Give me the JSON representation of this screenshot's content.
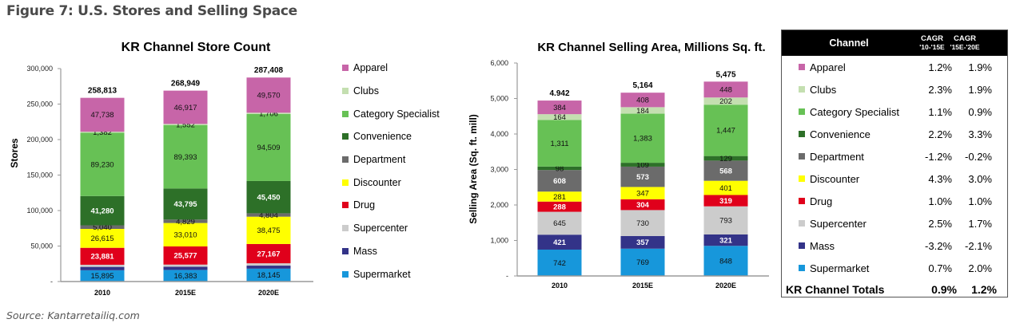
{
  "figure_title": "Figure 7: U.S. Stores and Selling Space",
  "source": "Source: Kantarretailiq.com",
  "legend": {
    "items": [
      {
        "label": "Apparel",
        "color": "#C765A8"
      },
      {
        "label": "Clubs",
        "color": "#C4DFB0"
      },
      {
        "label": "Category Specialist",
        "color": "#67C155"
      },
      {
        "label": "Convenience",
        "color": "#2D7028"
      },
      {
        "label": "Department",
        "color": "#6B6B6B"
      },
      {
        "label": "Discounter",
        "color": "#FFFF00"
      },
      {
        "label": "Drug",
        "color": "#E0001B"
      },
      {
        "label": "Supercenter",
        "color": "#CCCCCC"
      },
      {
        "label": "Mass",
        "color": "#333388"
      },
      {
        "label": "Supermarket",
        "color": "#1797DB"
      }
    ]
  },
  "chart_data": [
    {
      "type": "bar",
      "stacked": true,
      "title": "KR Channel Store Count",
      "xlabel": "",
      "ylabel": "Stores",
      "categories": [
        "2010",
        "2015E",
        "2020E"
      ],
      "ylim": [
        0,
        300000
      ],
      "yticks": [
        0,
        50000,
        100000,
        150000,
        200000,
        250000,
        300000
      ],
      "ytick_labels": [
        "-",
        "50,000",
        "100,000",
        "150,000",
        "200,000",
        "250,000",
        "300,000"
      ],
      "grid": false,
      "totals": [
        258813,
        268949,
        287408
      ],
      "total_labels": [
        "258,813",
        "268,949",
        "287,408"
      ],
      "series": [
        {
          "name": "Supermarket",
          "color": "#1797DB",
          "values": [
            15895,
            16383,
            18145
          ],
          "labels": [
            "15,895",
            "16,383",
            "18,145"
          ]
        },
        {
          "name": "Mass",
          "color": "#333388",
          "values": [
            4752,
            4393,
            4282
          ],
          "labels": null,
          "note": "unlabeled; estimated"
        },
        {
          "name": "Supercenter",
          "color": "#CCCCCC",
          "values": [
            3000,
            3100,
            3300
          ],
          "labels": null,
          "note": "unlabeled; estimated"
        },
        {
          "name": "Drug",
          "color": "#E0001B",
          "values": [
            23881,
            25577,
            27167
          ],
          "labels": [
            "23,881",
            "25,577",
            "27,167"
          ]
        },
        {
          "name": "Discounter",
          "color": "#FFFF00",
          "values": [
            26615,
            33010,
            38475
          ],
          "labels": [
            "26,615",
            "33,010",
            "38,475"
          ]
        },
        {
          "name": "Department",
          "color": "#6B6B6B",
          "values": [
            5040,
            4829,
            4804
          ],
          "labels": [
            "5,040",
            "4,829",
            "4,804"
          ]
        },
        {
          "name": "Convenience",
          "color": "#2D7028",
          "values": [
            41280,
            43795,
            45450
          ],
          "labels": [
            "41,280",
            "43,795",
            "45,450"
          ]
        },
        {
          "name": "Category Specialist",
          "color": "#67C155",
          "values": [
            89230,
            89393,
            94509
          ],
          "labels": [
            "89,230",
            "89,393",
            "94,509"
          ]
        },
        {
          "name": "Clubs",
          "color": "#C4DFB0",
          "values": [
            1382,
            1552,
            1706
          ],
          "labels": [
            "1,382",
            "1,552",
            "1,706"
          ]
        },
        {
          "name": "Apparel",
          "color": "#C765A8",
          "values": [
            47738,
            46917,
            49570
          ],
          "labels": [
            "47,738",
            "46,917",
            "49,570"
          ]
        }
      ]
    },
    {
      "type": "bar",
      "stacked": true,
      "title": "KR Channel Selling Area, Millions Sq. ft.",
      "xlabel": "",
      "ylabel": "Selling Area (Sq. ft. mill)",
      "categories": [
        "2010",
        "2015E",
        "2020E"
      ],
      "ylim": [
        0,
        6000
      ],
      "yticks": [
        0,
        1000,
        2000,
        3000,
        4000,
        5000,
        6000
      ],
      "ytick_labels": [
        "-",
        "1,000",
        "2,000",
        "3,000",
        "4,000",
        "5,000",
        "6,000"
      ],
      "grid": false,
      "totals": [
        4942,
        5164,
        5475
      ],
      "total_labels": [
        "4.942",
        "5,164",
        "5,475"
      ],
      "series": [
        {
          "name": "Supermarket",
          "color": "#1797DB",
          "values": [
            742,
            769,
            848
          ],
          "labels": [
            "742",
            "769",
            "848"
          ]
        },
        {
          "name": "Mass",
          "color": "#333388",
          "values": [
            421,
            357,
            321
          ],
          "labels": [
            "421",
            "357",
            "321"
          ]
        },
        {
          "name": "Supercenter",
          "color": "#CCCCCC",
          "values": [
            645,
            730,
            793
          ],
          "labels": [
            "645",
            "730",
            "793"
          ]
        },
        {
          "name": "Drug",
          "color": "#E0001B",
          "values": [
            288,
            304,
            319
          ],
          "labels": [
            "288",
            "304",
            "319"
          ]
        },
        {
          "name": "Discounter",
          "color": "#FFFF00",
          "values": [
            281,
            347,
            401
          ],
          "labels": [
            "281",
            "347",
            "401"
          ]
        },
        {
          "name": "Department",
          "color": "#6B6B6B",
          "values": [
            608,
            573,
            568
          ],
          "labels": [
            "608",
            "573",
            "568"
          ]
        },
        {
          "name": "Convenience",
          "color": "#2D7028",
          "values": [
            98,
            109,
            129
          ],
          "labels": [
            "98",
            "109",
            "129"
          ]
        },
        {
          "name": "Category Specialist",
          "color": "#67C155",
          "values": [
            1311,
            1383,
            1447
          ],
          "labels": [
            "1,311",
            "1,383",
            "1,447"
          ]
        },
        {
          "name": "Clubs",
          "color": "#C4DFB0",
          "values": [
            164,
            184,
            202
          ],
          "labels": [
            "164",
            "184",
            "202"
          ]
        },
        {
          "name": "Apparel",
          "color": "#C765A8",
          "values": [
            384,
            408,
            448
          ],
          "labels": [
            "384",
            "408",
            "448"
          ]
        }
      ]
    },
    {
      "type": "table",
      "title": "",
      "columns": [
        "Channel",
        "CAGR '10-'15E",
        "CAGR '15E-'20E"
      ],
      "rows": [
        [
          "Apparel",
          "1.2%",
          "1.9%"
        ],
        [
          "Clubs",
          "2.3%",
          "1.9%"
        ],
        [
          "Category Specialist",
          "1.1%",
          "0.9%"
        ],
        [
          "Convenience",
          "2.2%",
          "3.3%"
        ],
        [
          "Department",
          "-1.2%",
          "-0.2%"
        ],
        [
          "Discounter",
          "4.3%",
          "3.0%"
        ],
        [
          "Drug",
          "1.0%",
          "1.0%"
        ],
        [
          "Supercenter",
          "2.5%",
          "1.7%"
        ],
        [
          "Mass",
          "-3.2%",
          "-2.1%"
        ],
        [
          "Supermarket",
          "0.7%",
          "2.0%"
        ],
        [
          "KR Channel Totals",
          "0.9%",
          "1.2%"
        ]
      ]
    }
  ],
  "cagr_table": {
    "header": {
      "channel": "Channel",
      "cagr1_top": "CAGR",
      "cagr1_sub": "'10-'15E",
      "cagr2_top": "CAGR",
      "cagr2_sub": "'15E-'20E"
    },
    "rows": [
      {
        "channel": "Apparel",
        "color": "#C765A8",
        "cagr1": "1.2%",
        "cagr2": "1.9%"
      },
      {
        "channel": "Clubs",
        "color": "#C4DFB0",
        "cagr1": "2.3%",
        "cagr2": "1.9%"
      },
      {
        "channel": "Category Specialist",
        "color": "#67C155",
        "cagr1": "1.1%",
        "cagr2": "0.9%"
      },
      {
        "channel": "Convenience",
        "color": "#2D7028",
        "cagr1": "2.2%",
        "cagr2": "3.3%"
      },
      {
        "channel": "Department",
        "color": "#6B6B6B",
        "cagr1": "-1.2%",
        "cagr2": "-0.2%"
      },
      {
        "channel": "Discounter",
        "color": "#FFFF00",
        "cagr1": "4.3%",
        "cagr2": "3.0%"
      },
      {
        "channel": "Drug",
        "color": "#E0001B",
        "cagr1": "1.0%",
        "cagr2": "1.0%"
      },
      {
        "channel": "Supercenter",
        "color": "#CCCCCC",
        "cagr1": "2.5%",
        "cagr2": "1.7%"
      },
      {
        "channel": "Mass",
        "color": "#333388",
        "cagr1": "-3.2%",
        "cagr2": "-2.1%"
      },
      {
        "channel": "Supermarket",
        "color": "#1797DB",
        "cagr1": "0.7%",
        "cagr2": "2.0%"
      }
    ],
    "totals": {
      "channel": "KR Channel Totals",
      "cagr1": "0.9%",
      "cagr2": "1.2%"
    }
  }
}
